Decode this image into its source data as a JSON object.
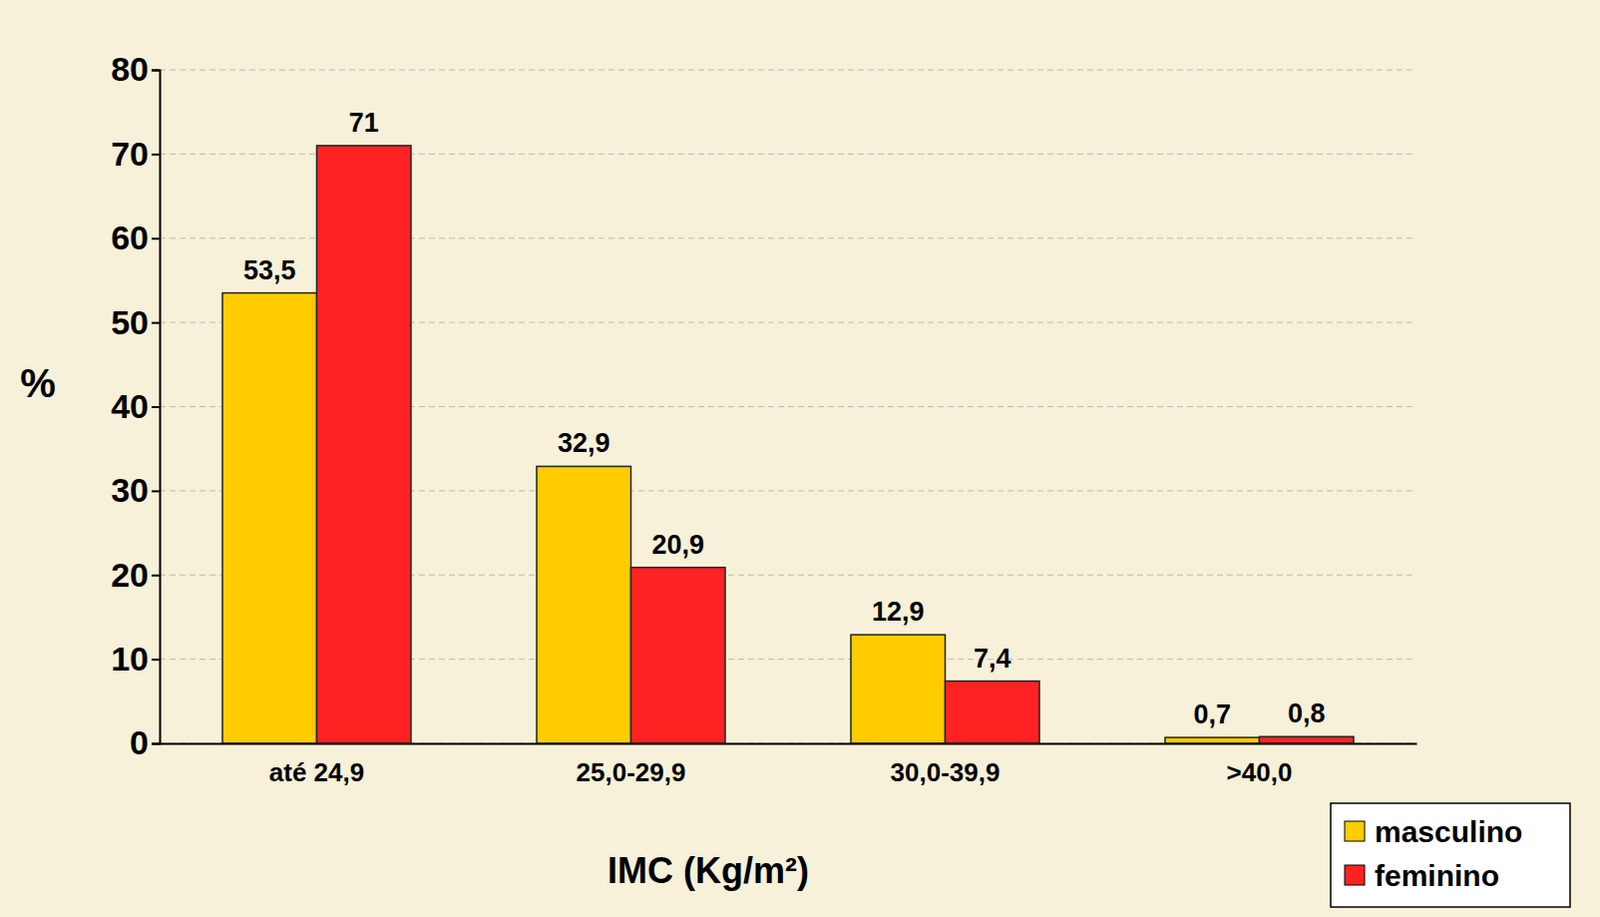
{
  "chart_data": {
    "type": "bar",
    "x_label": "IMC (Kg/m²)",
    "y_label": "%",
    "categories": [
      "até 24,9",
      "25,0-29,9",
      "30,0-39,9",
      ">40,0"
    ],
    "series": [
      {
        "name": "masculino",
        "color": "#ffcc00",
        "values": [
          53.5,
          32.9,
          12.9,
          0.7
        ],
        "value_labels": [
          "53,5",
          "32,9",
          "12,9",
          "0,7"
        ]
      },
      {
        "name": "feminino",
        "color": "#ff2222",
        "values": [
          71,
          20.9,
          7.4,
          0.8
        ],
        "value_labels": [
          "71",
          "20,9",
          "7,4",
          "0,8"
        ]
      }
    ],
    "ylim": [
      0,
      80
    ],
    "yticks": [
      0,
      10,
      20,
      30,
      40,
      50,
      60,
      70,
      80
    ],
    "grid": true,
    "legend": "lower right",
    "data_labels": true
  }
}
